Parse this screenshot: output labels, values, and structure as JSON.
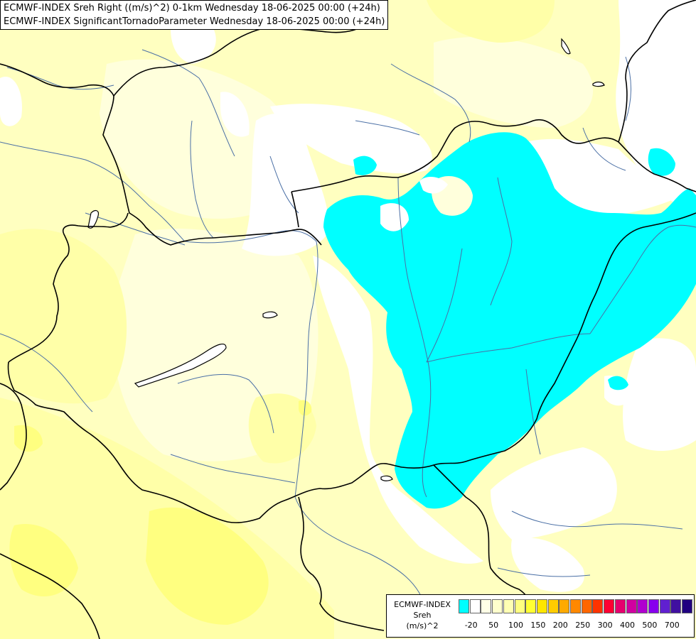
{
  "titles": {
    "line1": "ECMWF-INDEX Sreh Right ((m/s)^2) 0-1km Wednesday 18-06-2025 00:00 (+24h)",
    "line2": "ECMWF-INDEX SignificantTornadoParameter Wednesday 18-06-2025 00:00 (+24h)"
  },
  "legend": {
    "source": "ECMWF-INDEX",
    "parameter": "Sreh",
    "unit": "(m/s)^2",
    "tick_labels": [
      "-20",
      "50",
      "100",
      "150",
      "200",
      "250",
      "300",
      "400",
      "500",
      "700"
    ],
    "swatch_colors": [
      "#00ffff",
      "#ffffff",
      "#ffffe6",
      "#ffffcc",
      "#ffffb3",
      "#ffff80",
      "#ffff33",
      "#ffe600",
      "#ffcc00",
      "#ffaa00",
      "#ff8800",
      "#ff6600",
      "#ff3300",
      "#ff0033",
      "#e6006e",
      "#d000a0",
      "#b000d0",
      "#8800ee",
      "#6020d0",
      "#4010a0",
      "#200080"
    ]
  },
  "map_colors": {
    "base": "#ffffc0",
    "light": "#ffffdc",
    "pale": "#ffffa8",
    "yellow": "#ffff80",
    "bright": "#ffff50",
    "none": "#ffffff",
    "negative": "#00ffff",
    "border": "#000000",
    "river": "#4a6fa5"
  }
}
